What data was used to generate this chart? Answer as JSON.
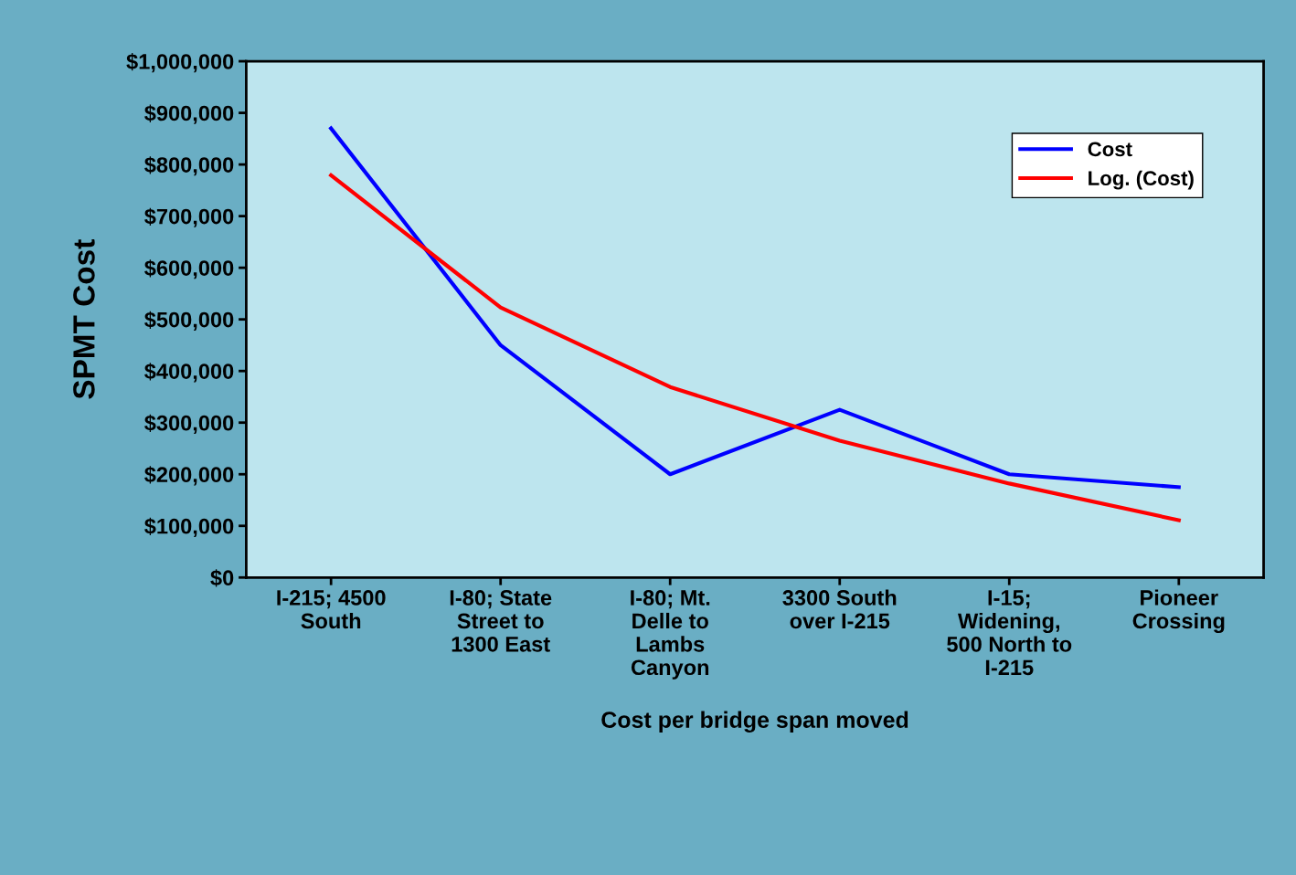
{
  "chart_data": {
    "type": "line",
    "xlabel": "Cost per bridge span moved",
    "ylabel": "SPMT Cost",
    "categories": [
      "I-215; 4500\nSouth",
      "I-80; State\nStreet to\n1300 East",
      "I-80; Mt.\nDelle to\nLambs\nCanyon",
      "3300 South\nover I-215",
      "I-15;\nWidening,\n500 North to\nI-215",
      "Pioneer\nCrossing"
    ],
    "series": [
      {
        "name": "Cost",
        "color": "#0000ff",
        "values": [
          870000,
          450000,
          200000,
          325000,
          200000,
          175000
        ]
      },
      {
        "name": "Log. (Cost)",
        "color": "#ff0000",
        "values": [
          779000,
          523000,
          369000,
          265000,
          182000,
          111000
        ]
      }
    ],
    "ylim": [
      0,
      1000000
    ],
    "yticks": [
      {
        "value": 0,
        "label": "$0"
      },
      {
        "value": 100000,
        "label": "$100,000"
      },
      {
        "value": 200000,
        "label": "$200,000"
      },
      {
        "value": 300000,
        "label": "$300,000"
      },
      {
        "value": 400000,
        "label": "$400,000"
      },
      {
        "value": 500000,
        "label": "$500,000"
      },
      {
        "value": 600000,
        "label": "$600,000"
      },
      {
        "value": 700000,
        "label": "$700,000"
      },
      {
        "value": 800000,
        "label": "$800,000"
      },
      {
        "value": 900000,
        "label": "$900,000"
      },
      {
        "value": 1000000,
        "label": "$1,000,000"
      }
    ],
    "grid": false,
    "legend": "top right",
    "marker": "none",
    "line_style": "solid"
  }
}
